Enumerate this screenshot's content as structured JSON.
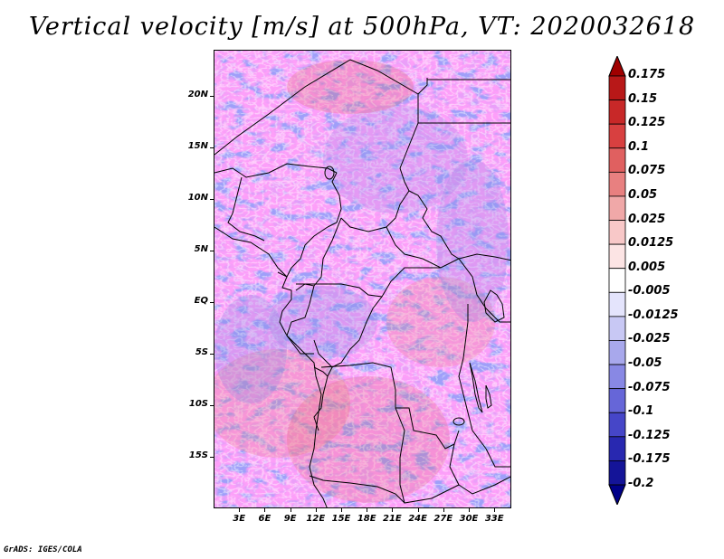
{
  "title": "Vertical velocity [m/s] at 500hPa, VT: 2020032618",
  "map": {
    "lat_labels": [
      "20N",
      "15N",
      "10N",
      "5N",
      "EQ",
      "5S",
      "10S",
      "15S"
    ],
    "lat_values": [
      20,
      15,
      10,
      5,
      0,
      -5,
      -10,
      -15
    ],
    "lon_labels": [
      "3E",
      "6E",
      "9E",
      "12E",
      "15E",
      "18E",
      "21E",
      "24E",
      "27E",
      "30E",
      "33E"
    ],
    "lon_values": [
      3,
      6,
      9,
      12,
      15,
      18,
      21,
      24,
      27,
      30,
      33
    ],
    "lat_range": [
      -20,
      24.5
    ],
    "lon_range": [
      0,
      35
    ]
  },
  "colorbar": {
    "labels": [
      "0.175",
      "0.15",
      "0.125",
      "0.1",
      "0.075",
      "0.05",
      "0.025",
      "0.0125",
      "0.005",
      "-0.005",
      "-0.0125",
      "-0.025",
      "-0.05",
      "-0.075",
      "-0.1",
      "-0.125",
      "-0.175",
      "-0.2"
    ],
    "colors": [
      "#a00000",
      "#b81818",
      "#c82828",
      "#d84040",
      "#e06060",
      "#e88080",
      "#f0a8a8",
      "#f8c8c8",
      "#fce4e4",
      "#ffffff",
      "#e4e4fc",
      "#c8c8f4",
      "#a8a8ec",
      "#8888e4",
      "#6666d8",
      "#4646c8",
      "#2828b0",
      "#141498",
      "#000088"
    ]
  },
  "credit": "GrADS: IGES/COLA"
}
